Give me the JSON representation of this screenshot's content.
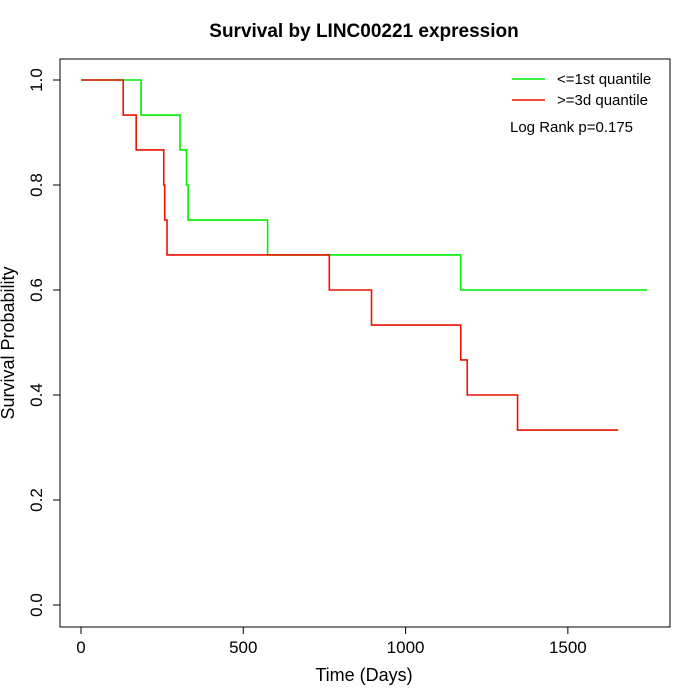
{
  "chart_data": {
    "type": "line",
    "title": "Survival by LINC00221 expression",
    "xlabel": "Time (Days)",
    "ylabel": "Survival Probability",
    "xlim": [
      0,
      1750
    ],
    "ylim": [
      0,
      1
    ],
    "xticks": [
      0,
      500,
      1000,
      1500
    ],
    "yticks": [
      0.0,
      0.2,
      0.4,
      0.6,
      0.8,
      1.0
    ],
    "xtick_labels": [
      "0",
      "500",
      "1000",
      "1500"
    ],
    "ytick_labels": [
      "0.0",
      "0.2",
      "0.4",
      "0.6",
      "0.8",
      "1.0"
    ],
    "grid": false,
    "legend_position": "top-right",
    "annotation": "Log Rank p=0.175",
    "series": [
      {
        "name": "<=1st quantile",
        "color": "#00ee00",
        "step": true,
        "x": [
          0,
          185,
          305,
          325,
          330,
          575,
          1170,
          1745
        ],
        "y": [
          1.0,
          0.9333,
          0.8667,
          0.8,
          0.7333,
          0.6667,
          0.6,
          0.6
        ]
      },
      {
        "name": ">=3d quantile",
        "color": "#ee1100",
        "step": true,
        "x": [
          0,
          130,
          170,
          255,
          258,
          265,
          765,
          895,
          1170,
          1190,
          1345,
          1655
        ],
        "y": [
          1.0,
          0.9333,
          0.8667,
          0.8,
          0.7333,
          0.6667,
          0.6,
          0.5333,
          0.4667,
          0.4,
          0.3333,
          0.3333
        ]
      }
    ]
  }
}
